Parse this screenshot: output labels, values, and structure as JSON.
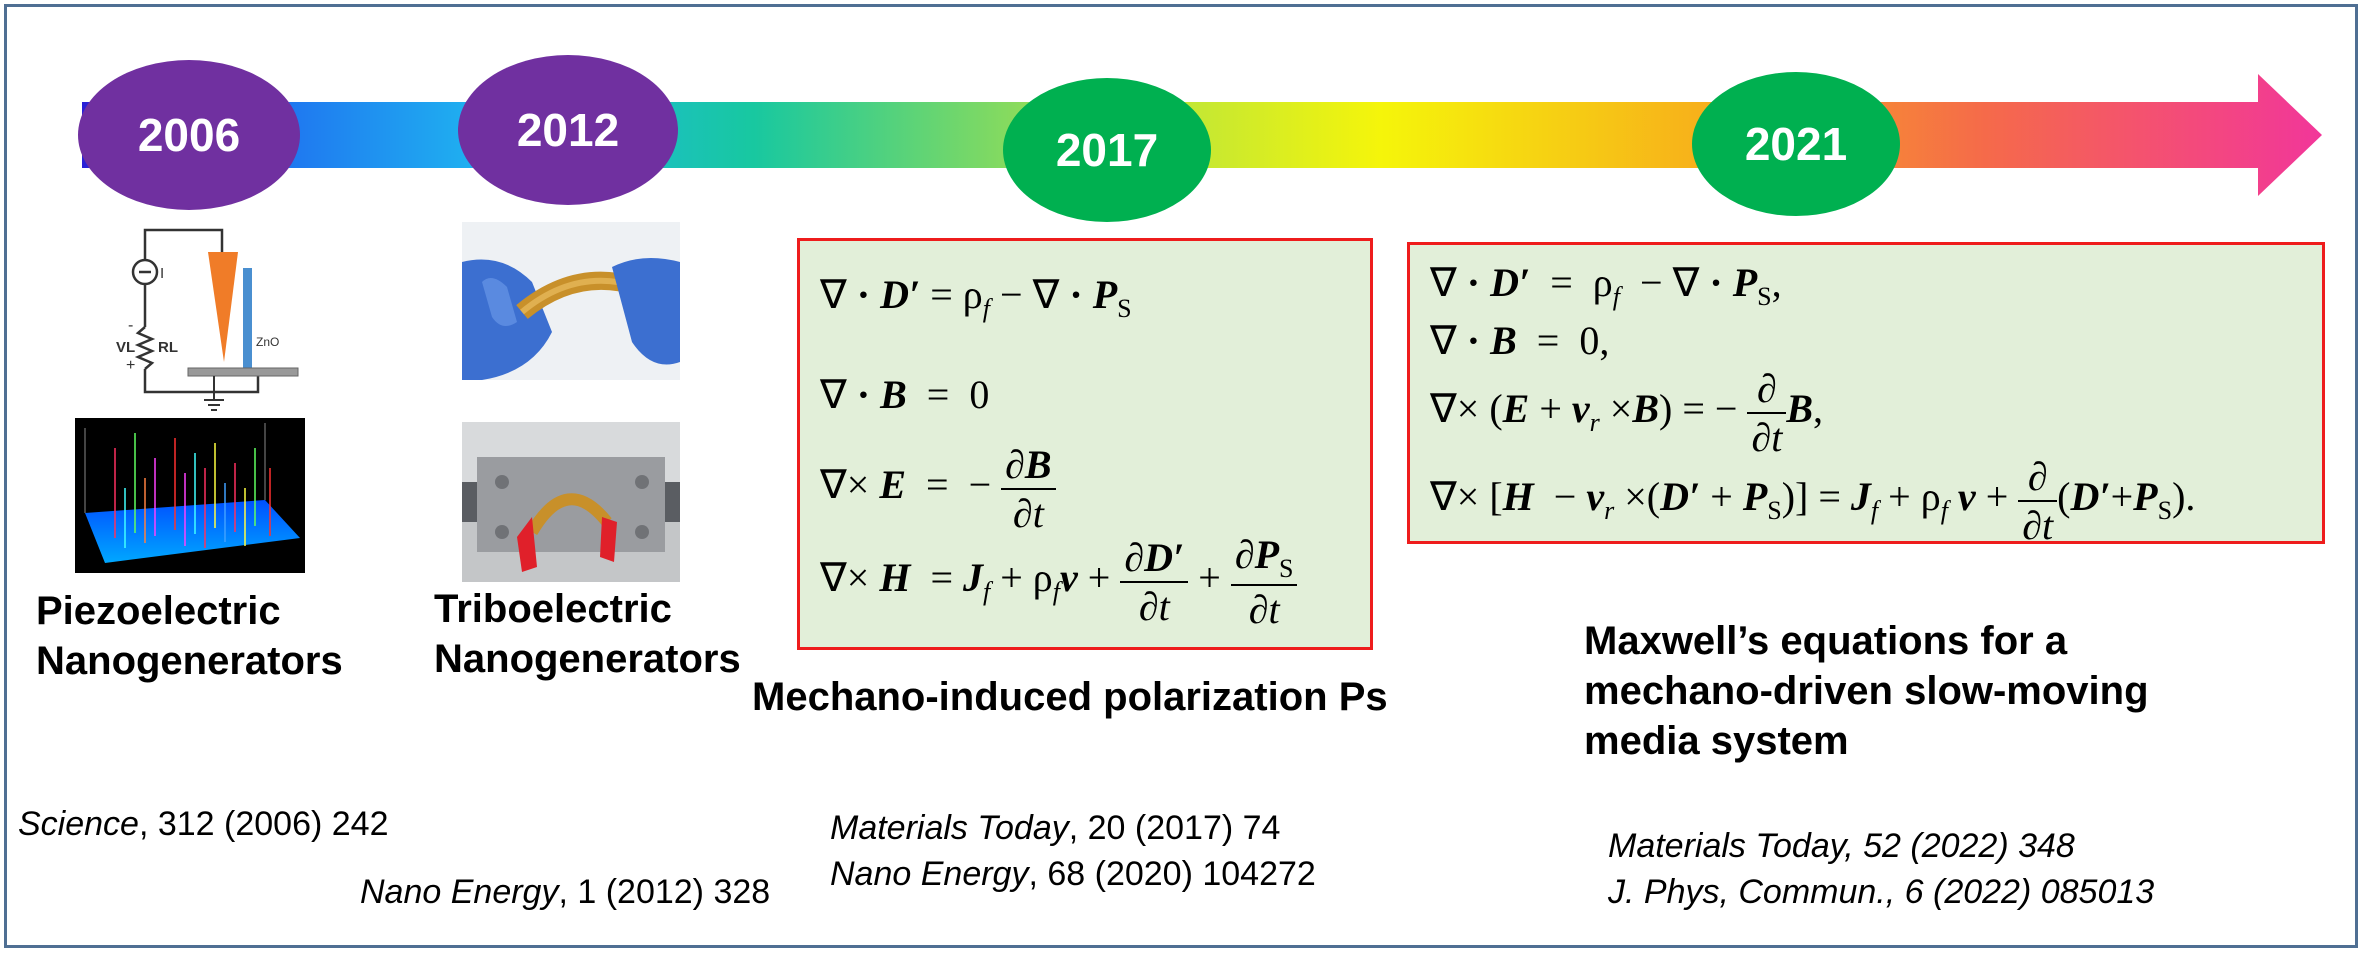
{
  "timeline": {
    "years": [
      {
        "label": "2006",
        "color": "#7030a0"
      },
      {
        "label": "2012",
        "color": "#7030a0"
      },
      {
        "label": "2017",
        "color": "#00b050"
      },
      {
        "label": "2021",
        "color": "#00b050"
      }
    ]
  },
  "circuit": {
    "source_label": "I",
    "voltage_label": "VL",
    "resistor_label": "RL",
    "minus_label": "-",
    "plus_label": "+",
    "nanowire_label": "ZnO"
  },
  "labels": {
    "piezo_line1": "Piezoelectric",
    "piezo_line2": "Nanogenerators",
    "tribo_line1": "Triboelectric",
    "tribo_line2": "Nanogenerators",
    "mechano": "Mechano-induced polarization Ps",
    "maxwell_line1": "Maxwell’s equations for a",
    "maxwell_line2": "mechano-driven slow-moving",
    "maxwell_line3": "media system"
  },
  "citations": {
    "c1_journal": "Science",
    "c1_rest": ", 312 (2006) 242",
    "c2_journal": "Nano Energy",
    "c2_rest": ", 1 (2012) 328",
    "c3_journal": "Materials Today",
    "c3_rest": ", 20 (2017) 74",
    "c4_journal": "Nano Energy",
    "c4_rest": ", 68 (2020) 104272",
    "c5": "Materials Today, 52 (2022) 348",
    "c6": "J. Phys, Commun., 6 (2022) 085013"
  },
  "colors": {
    "box_fill": "#e2efd9",
    "box_border": "#ee1c1c",
    "frame": "#4f6f93"
  }
}
